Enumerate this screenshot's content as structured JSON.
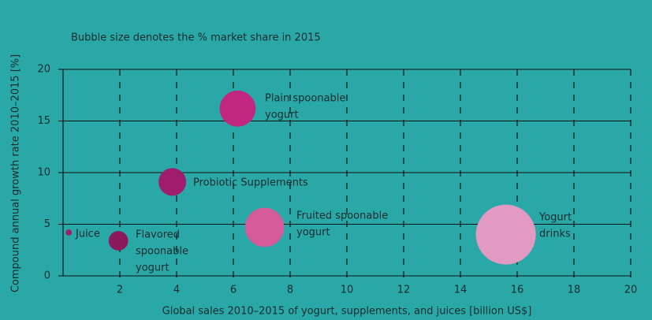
{
  "chart_data": {
    "type": "bubble",
    "subtitle": "Bubble size denotes the % market share in 2015",
    "x_label": "Global sales 2010–2015 of yogurt, supplements, and juices [billion US$]",
    "y_label": "Compound annual growth rate 2010–2015 [%]",
    "labels": [
      [
        "Juice"
      ],
      [
        "Flavored",
        "spoonable",
        "yogurt"
      ],
      [
        "Probiotic Supplements"
      ],
      [
        "Plain spoonable",
        "yogurt"
      ],
      [
        "Fruited spoonable",
        "yogurt"
      ],
      [
        "Yogurt",
        "drinks"
      ]
    ],
    "x": [
      0.2,
      1.95,
      3.85,
      6.15,
      7.1,
      15.6
    ],
    "values": [
      4.2,
      3.4,
      9.1,
      16.2,
      4.7,
      4.0
    ],
    "sizes": [
      0.5,
      5,
      10,
      17,
      20,
      47
    ],
    "colors": [
      "#9c1e6e",
      "#8b1a5c",
      "#a01c6c",
      "#c2277f",
      "#d45a9a",
      "#e29ac3"
    ],
    "xlim": [
      0,
      20
    ],
    "xticks": [
      2,
      4,
      6,
      8,
      10,
      12,
      14,
      16,
      18,
      20
    ],
    "ylim": [
      0,
      20
    ],
    "yticks": [
      0,
      5,
      10,
      15,
      20
    ],
    "grid": true
  }
}
